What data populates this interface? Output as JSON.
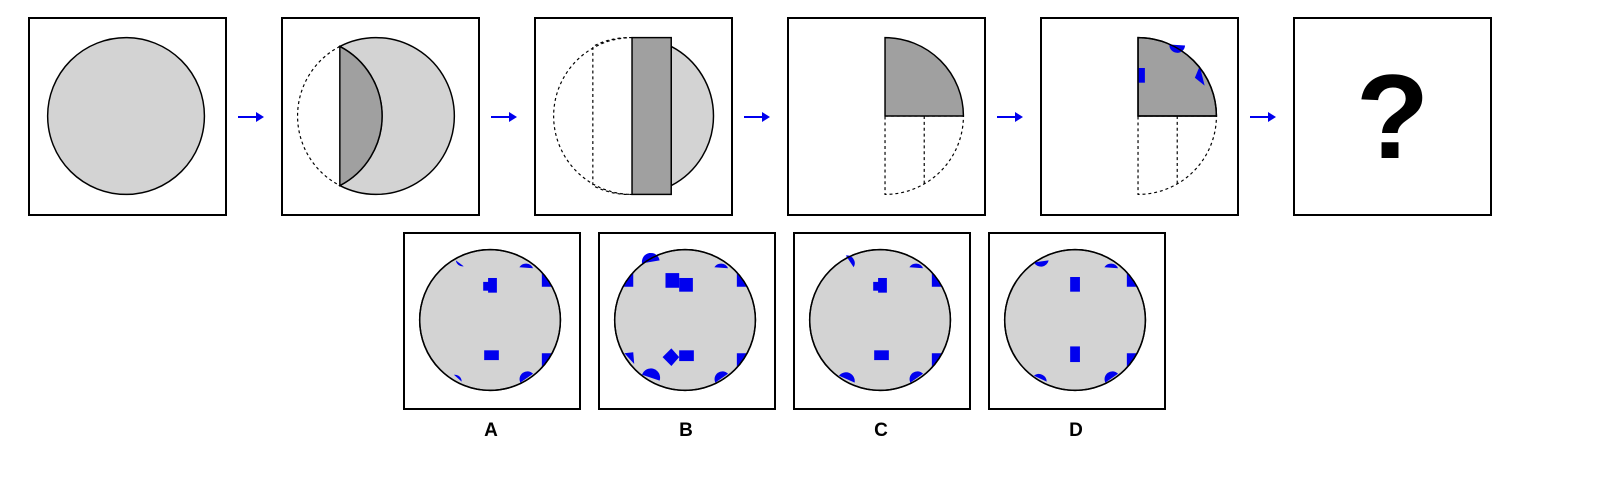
{
  "puzzle": {
    "question_mark": "?",
    "options": [
      {
        "label": "A"
      },
      {
        "label": "B"
      },
      {
        "label": "C"
      },
      {
        "label": "D"
      }
    ]
  },
  "colors": {
    "paper": "#d3d3d3",
    "fold": "#a0a0a0",
    "hole": "#0000ee",
    "outline": "#000000",
    "arrow": "#0000ee"
  }
}
